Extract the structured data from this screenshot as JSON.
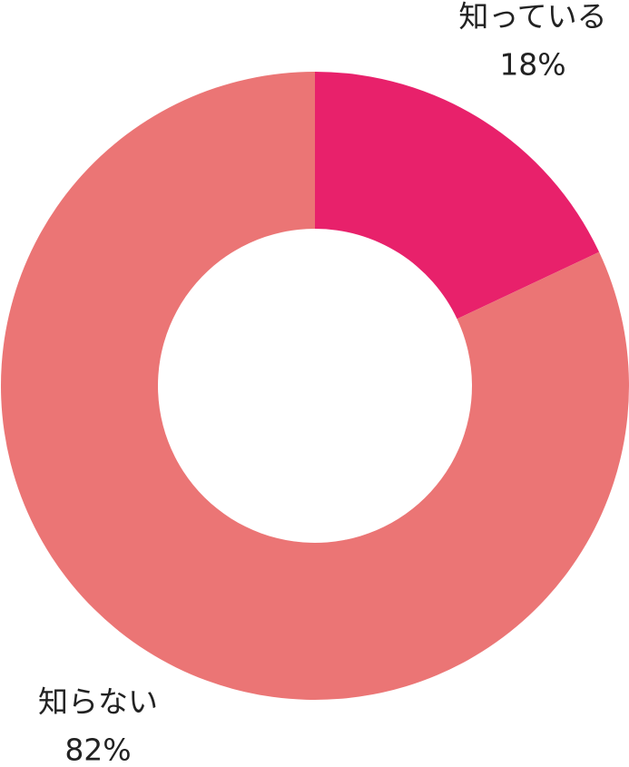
{
  "chart_data": {
    "type": "donut",
    "categories": [
      "知っている",
      "知らない"
    ],
    "values": [
      18,
      82
    ],
    "value_labels": [
      "18%",
      "82%"
    ],
    "colors": [
      "#e8216b",
      "#eb7575"
    ]
  }
}
